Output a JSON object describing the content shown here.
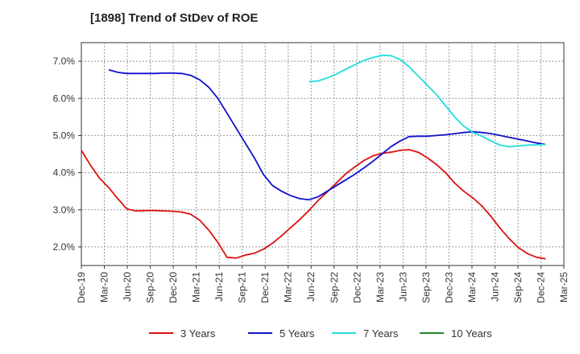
{
  "chart_data": {
    "type": "line",
    "title": "[1898]  Trend of StDev of ROE",
    "xlabel": "",
    "ylabel": "",
    "ylim": [
      1.5,
      7.5
    ],
    "yticks": [
      2.0,
      3.0,
      4.0,
      5.0,
      6.0,
      7.0
    ],
    "ytick_labels": [
      "2.0%",
      "3.0%",
      "4.0%",
      "5.0%",
      "6.0%",
      "7.0%"
    ],
    "xticks": [
      "Dec-19",
      "Mar-20",
      "Jun-20",
      "Sep-20",
      "Dec-20",
      "Mar-21",
      "Jun-21",
      "Sep-21",
      "Dec-21",
      "Mar-22",
      "Jun-22",
      "Sep-22",
      "Dec-22",
      "Mar-23",
      "Jun-23",
      "Sep-23",
      "Dec-23",
      "Mar-24",
      "Jun-24",
      "Sep-24",
      "Dec-24",
      "Mar-25"
    ],
    "grid": true,
    "legend_position": "bottom",
    "series": [
      {
        "name": "3 Years",
        "color": "#dd1111",
        "values": [
          4.6,
          4.2,
          3.85,
          3.6,
          3.3,
          3.02,
          2.97,
          2.98,
          2.98,
          2.97,
          2.96,
          2.94,
          2.88,
          2.72,
          2.45,
          2.12,
          1.72,
          1.7,
          1.78,
          1.83,
          1.94,
          2.1,
          2.3,
          2.52,
          2.74,
          2.98,
          3.25,
          3.48,
          3.72,
          3.96,
          4.15,
          4.32,
          4.45,
          4.52,
          4.55,
          4.6,
          4.62,
          4.55,
          4.4,
          4.22,
          4.0,
          3.72,
          3.5,
          3.32,
          3.1,
          2.82,
          2.5,
          2.22,
          1.98,
          1.82,
          1.72,
          1.68
        ]
      },
      {
        "name": "5 Years",
        "color": "#1111cc",
        "values": [
          null,
          null,
          null,
          6.77,
          6.7,
          6.67,
          6.67,
          6.67,
          6.67,
          6.68,
          6.68,
          6.67,
          6.62,
          6.5,
          6.3,
          6.0,
          5.6,
          5.2,
          4.8,
          4.4,
          3.95,
          3.65,
          3.5,
          3.38,
          3.3,
          3.27,
          3.35,
          3.5,
          3.65,
          3.8,
          3.95,
          4.12,
          4.3,
          4.5,
          4.7,
          4.85,
          4.97,
          4.98,
          4.98,
          5.0,
          5.02,
          5.05,
          5.08,
          5.1,
          5.08,
          5.05,
          5.0,
          4.95,
          4.9,
          4.85,
          4.8,
          4.76
        ]
      },
      {
        "name": "7 Years",
        "color": "#22dddd",
        "values": [
          null,
          null,
          null,
          null,
          null,
          null,
          null,
          null,
          null,
          null,
          null,
          null,
          null,
          null,
          null,
          null,
          null,
          null,
          null,
          null,
          null,
          null,
          null,
          null,
          null,
          6.45,
          6.47,
          6.55,
          6.65,
          6.78,
          6.9,
          7.02,
          7.1,
          7.16,
          7.15,
          7.05,
          6.85,
          6.6,
          6.35,
          6.1,
          5.8,
          5.5,
          5.25,
          5.08,
          4.98,
          4.85,
          4.74,
          4.7,
          4.72,
          4.74,
          4.75,
          4.76
        ]
      },
      {
        "name": "10 Years",
        "color": "#228822",
        "values": []
      }
    ]
  }
}
